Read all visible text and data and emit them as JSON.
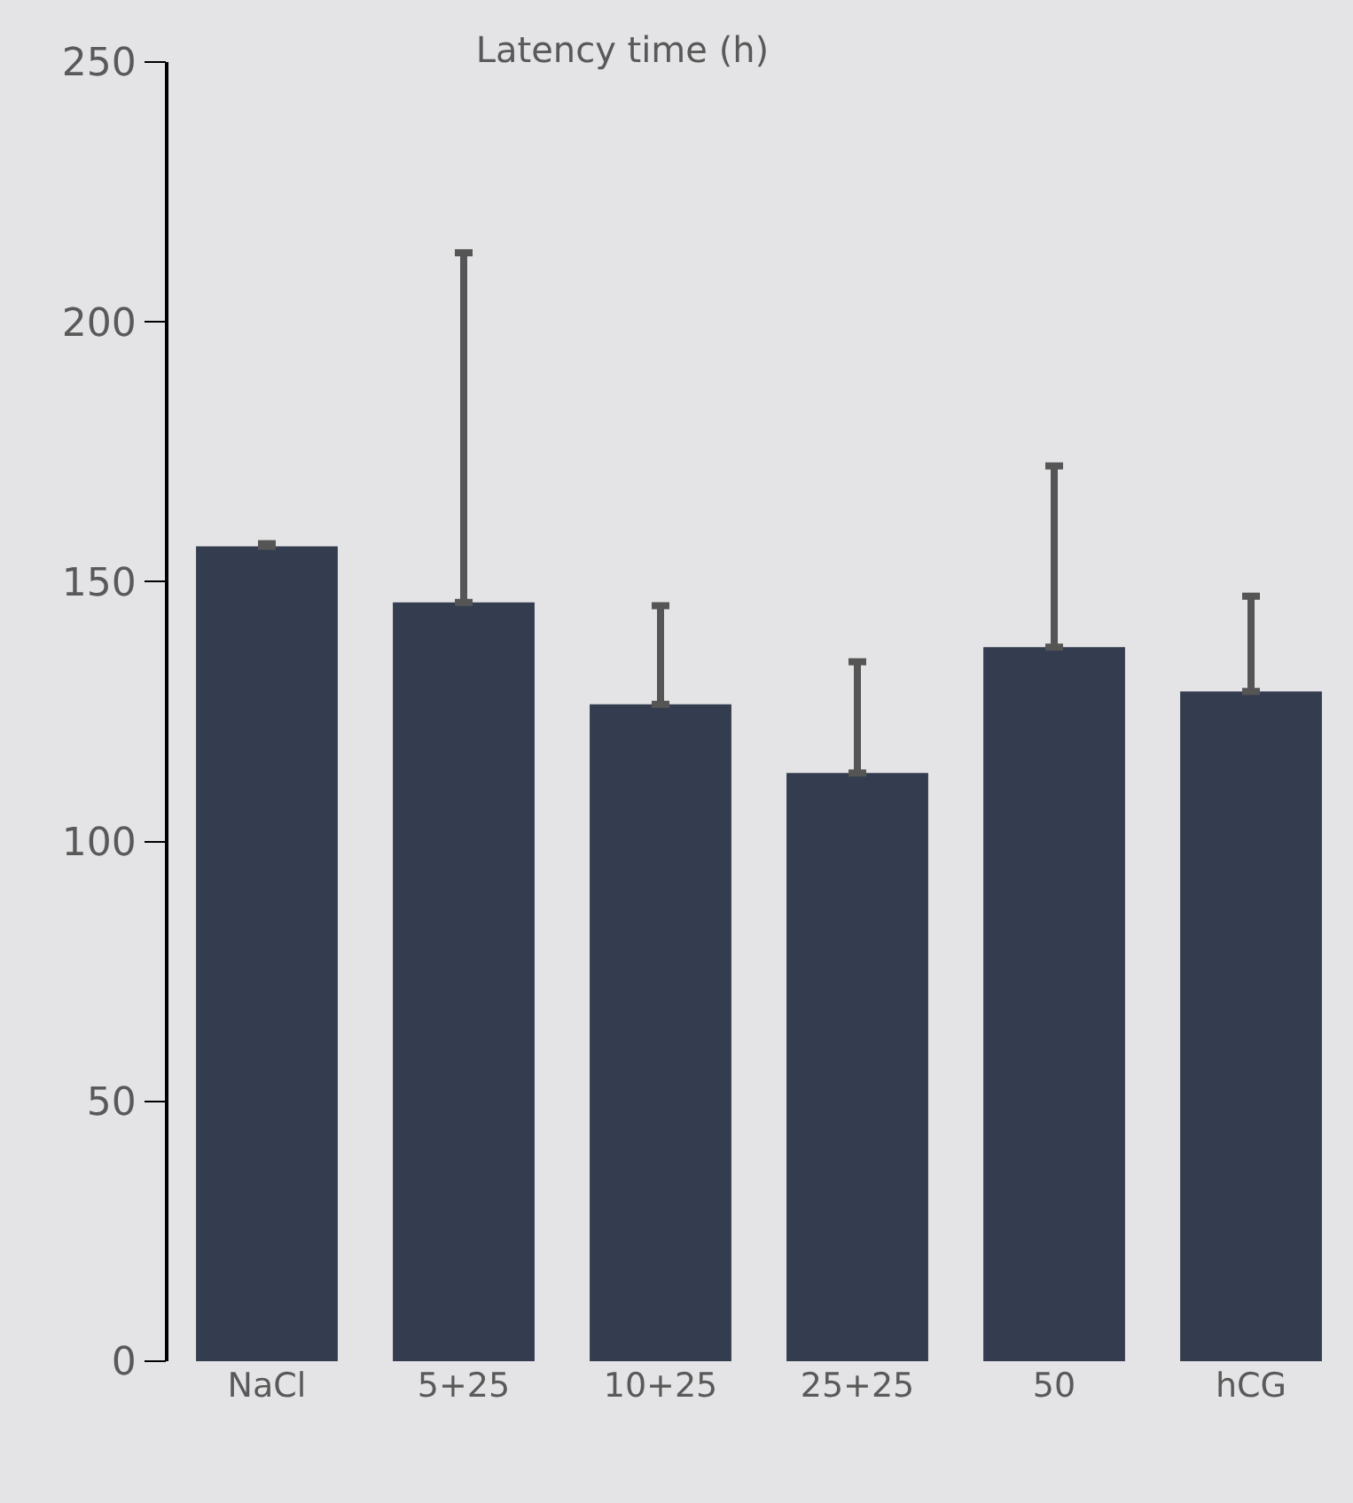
{
  "chart_data": {
    "type": "bar",
    "title": "Latency time (h)",
    "categories": [
      "NaCl",
      "5+25",
      "10+25",
      "25+25",
      "50",
      "hCG"
    ],
    "values": [
      156.8,
      146,
      126.4,
      113.2,
      137.4,
      128.9
    ],
    "errors": [
      0.5,
      67.3,
      19,
      21.4,
      34.9,
      18.3
    ],
    "color": "#333d4f",
    "ylim": [
      0,
      250
    ],
    "yticks": [
      0,
      50,
      100,
      150,
      200,
      250
    ],
    "grid": false,
    "legend": false
  }
}
